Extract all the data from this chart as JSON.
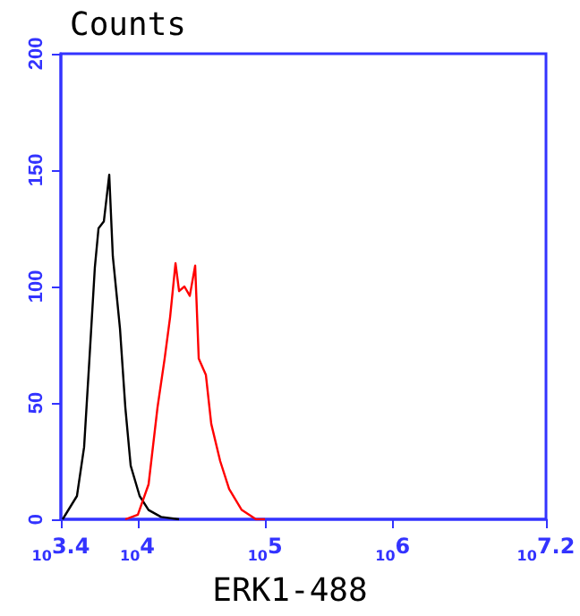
{
  "chart_data": {
    "type": "line",
    "ylabel": "Counts",
    "xlabel": "ERK1-488",
    "log": "x",
    "grid": false,
    "marker": "none",
    "line_style": "solid",
    "xlim": [
      2512,
      15848932
    ],
    "xticks": [
      {
        "value": 2512,
        "label": "10$^{3.4}$"
      },
      {
        "value": 10000,
        "label": "10$^{4}$"
      },
      {
        "value": 100000,
        "label": "10$^{5}$"
      },
      {
        "value": 1000000,
        "label": "10$^{6}$"
      },
      {
        "value": 15848932,
        "label": "10$^{7.2}$"
      }
    ],
    "ylim": [
      0,
      200
    ],
    "yticks": [
      0,
      50,
      100,
      150,
      200
    ],
    "series": [
      {
        "color": "#000000",
        "x": [
          2594,
          3357,
          3820,
          4207,
          4634,
          4955,
          5457,
          6012,
          6412,
          7295,
          8035,
          8851,
          10399,
          12218,
          15311,
          21180
        ],
        "values": [
          0,
          10,
          31,
          69,
          108,
          125,
          128,
          148,
          113,
          82,
          48,
          23,
          10,
          4,
          1,
          0
        ]
      },
      {
        "color": "#ff0000",
        "x": [
          8035,
          10069,
          12218,
          14355,
          16324,
          18030,
          19860,
          21180,
          23330,
          25700,
          28310,
          30200,
          34360,
          37840,
          44460,
          52240,
          65580,
          84920,
          99800
        ],
        "values": [
          0,
          2,
          15,
          48,
          69,
          87,
          110,
          98,
          100,
          96,
          109,
          69,
          62,
          41,
          25,
          13,
          4,
          0,
          0
        ]
      }
    ]
  }
}
